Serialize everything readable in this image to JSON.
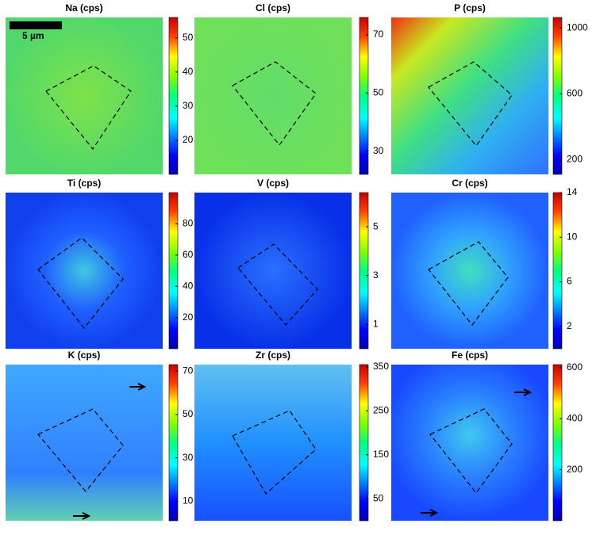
{
  "colormap": "jet",
  "chart_data": [
    {
      "type": "heatmap",
      "title": "Na (cps)",
      "clim": [
        10,
        56
      ],
      "cticks": [
        20,
        30,
        40,
        50
      ],
      "scale_bar_label": "5 µm"
    },
    {
      "type": "heatmap",
      "title": "Cl (cps)",
      "clim": [
        22,
        76
      ],
      "cticks": [
        30,
        50,
        70
      ]
    },
    {
      "type": "heatmap",
      "title": "P (cps)",
      "clim": [
        110,
        1063
      ],
      "cticks": [
        200,
        600,
        1000
      ]
    },
    {
      "type": "heatmap",
      "title": "Ti (cps)",
      "clim": [
        0,
        100
      ],
      "cticks": [
        20,
        40,
        60,
        80
      ]
    },
    {
      "type": "heatmap",
      "title": "V (cps)",
      "clim": [
        0,
        6.4
      ],
      "cticks": [
        1,
        3,
        5
      ]
    },
    {
      "type": "heatmap",
      "title": "Cr (cps)",
      "clim": [
        0,
        14
      ],
      "cticks": [
        2,
        6,
        10,
        14
      ]
    },
    {
      "type": "heatmap",
      "title": "K (cps)",
      "clim": [
        1,
        73
      ],
      "cticks": [
        10,
        30,
        50,
        70
      ]
    },
    {
      "type": "heatmap",
      "title": "Zr (cps)",
      "clim": [
        0,
        355
      ],
      "cticks": [
        50,
        150,
        250,
        350
      ]
    },
    {
      "type": "heatmap",
      "title": "Fe (cps)",
      "clim": [
        0,
        612
      ],
      "cticks": [
        200,
        400,
        600
      ]
    }
  ]
}
